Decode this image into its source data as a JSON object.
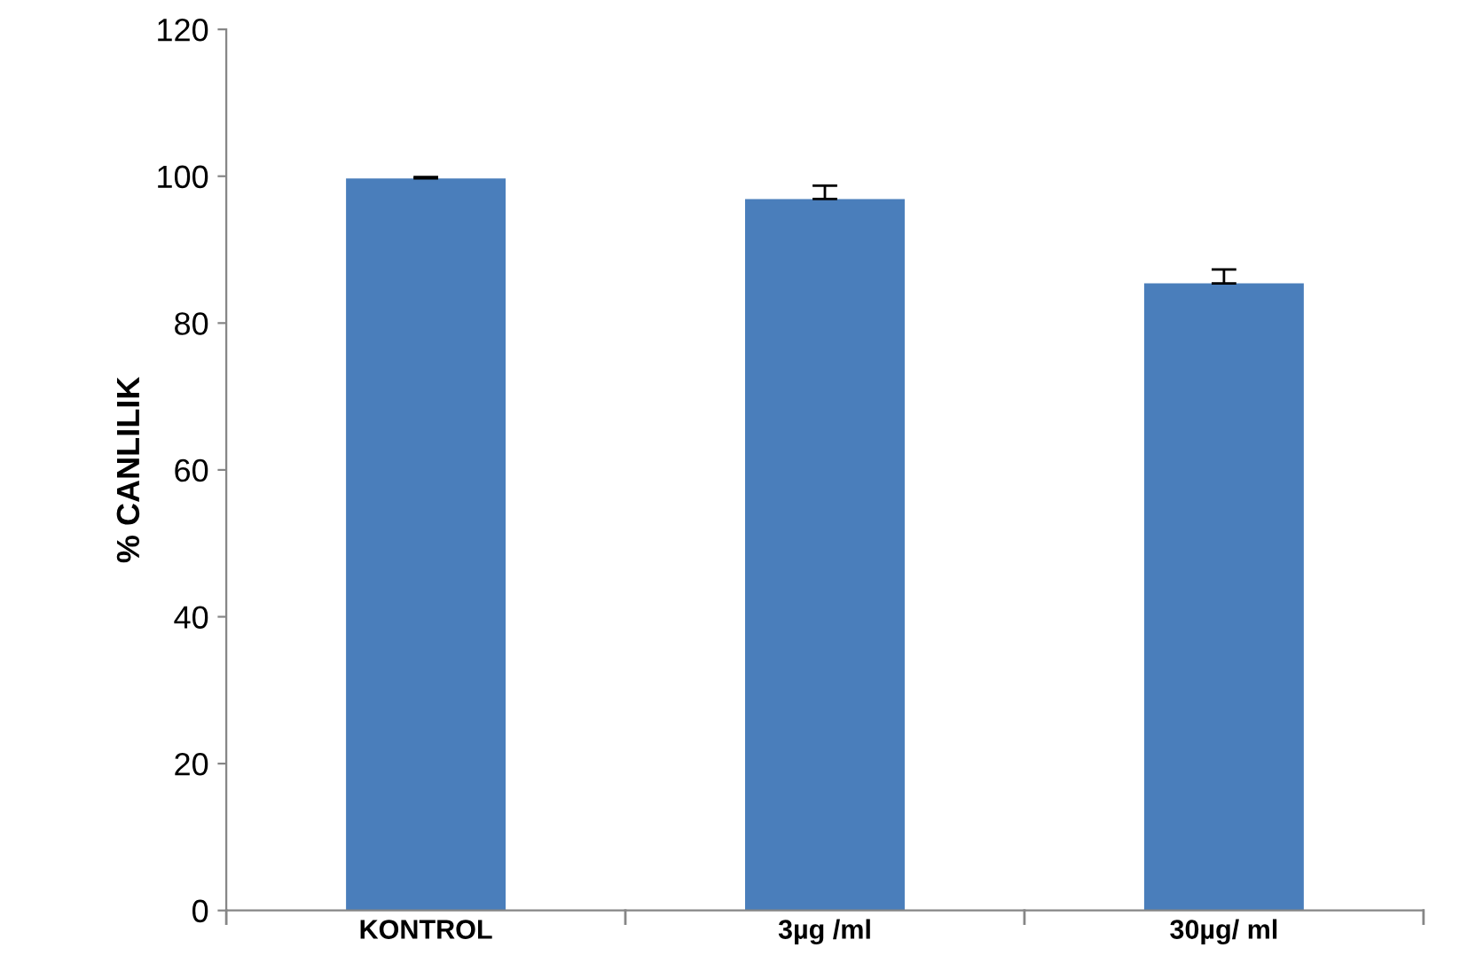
{
  "chart_data": {
    "type": "bar",
    "ylabel": "% CANLILIK",
    "categories": [
      "KONTROL",
      "3µg /ml",
      "30µg/ ml"
    ],
    "values": [
      99.7,
      96.9,
      85.4
    ],
    "errors": [
      [
        99.7,
        99.9
      ],
      [
        96.9,
        98.7
      ],
      [
        85.4,
        87.3
      ]
    ],
    "color": "#4a7ebb",
    "ylim": [
      0,
      120
    ],
    "yticks": [
      0,
      20,
      40,
      60,
      80,
      100,
      120
    ],
    "grid": false
  }
}
